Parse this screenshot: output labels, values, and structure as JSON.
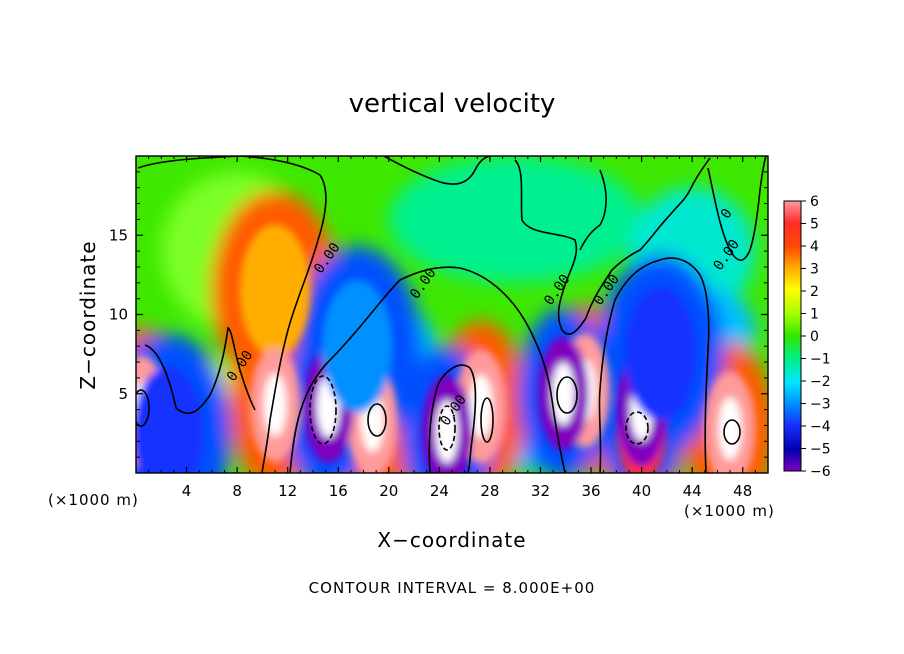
{
  "chart_data": {
    "type": "heatmap",
    "title": "vertical velocity",
    "xlabel": "X−coordinate",
    "ylabel": "Z−coordinate",
    "x_unit_left": "(×1000 m)",
    "x_unit_right": "(×1000 m)",
    "footer": "CONTOUR INTERVAL = 8.000E+00",
    "xlim": [
      0,
      50
    ],
    "ylim": [
      0,
      20
    ],
    "x_ticks": [
      4,
      8,
      12,
      16,
      20,
      24,
      28,
      32,
      36,
      40,
      44,
      48
    ],
    "y_ticks": [
      5,
      10,
      15
    ],
    "colorbar": {
      "range": [
        -6,
        6
      ],
      "ticks": [
        "6",
        "5",
        "4",
        "3",
        "2",
        "1",
        "0",
        "−1",
        "−2",
        "−3",
        "−4",
        "−5",
        "−6"
      ]
    },
    "contour_labels": [
      {
        "text": "0.00",
        "x": 15.4,
        "z": 13.4
      },
      {
        "text": "0.00",
        "x": 23.0,
        "z": 11.8
      },
      {
        "text": "0.00",
        "x": 33.6,
        "z": 11.4
      },
      {
        "text": "0.00",
        "x": 37.5,
        "z": 11.4
      },
      {
        "text": "0.00",
        "x": 47.0,
        "z": 13.6
      },
      {
        "text": "0.00",
        "x": 8.5,
        "z": 6.6
      },
      {
        "text": "0.00",
        "x": 25.4,
        "z": 3.8
      },
      {
        "text": "0",
        "x": 47.0,
        "z": 16.2
      }
    ],
    "features": [
      {
        "kind": "updraft",
        "x": 11.0,
        "z": 11.5,
        "value": 3.0
      },
      {
        "kind": "updraft",
        "x": 11.0,
        "z": 4.3,
        "value": 6.0
      },
      {
        "kind": "updraft",
        "x": 18.7,
        "z": 3.3,
        "value": 6.0
      },
      {
        "kind": "updraft",
        "x": 27.3,
        "z": 4.2,
        "value": 6.0
      },
      {
        "kind": "updraft",
        "x": 47.0,
        "z": 2.8,
        "value": 6.0
      },
      {
        "kind": "updraft",
        "x": 0.5,
        "z": 3.8,
        "value": 6.0
      },
      {
        "kind": "updraft",
        "x": 35.5,
        "z": 5.2,
        "value": 6.0
      },
      {
        "kind": "updraft",
        "x": 40.0,
        "z": 3.0,
        "value": 5.5
      },
      {
        "kind": "downdraft",
        "x": 15.2,
        "z": 4.2,
        "value": -6.0
      },
      {
        "kind": "downdraft",
        "x": 24.6,
        "z": 2.6,
        "value": -6.0
      },
      {
        "kind": "downdraft",
        "x": 33.8,
        "z": 5.0,
        "value": -6.0
      },
      {
        "kind": "downdraft",
        "x": 40.0,
        "z": 4.0,
        "value": -5.5
      },
      {
        "kind": "downdraft",
        "x": 2.5,
        "z": 2.5,
        "value": -4.0
      },
      {
        "kind": "downdraft",
        "x": 17.5,
        "z": 8.0,
        "value": -2.5
      },
      {
        "kind": "downdraft",
        "x": 41.5,
        "z": 7.5,
        "value": -3.5
      }
    ]
  }
}
